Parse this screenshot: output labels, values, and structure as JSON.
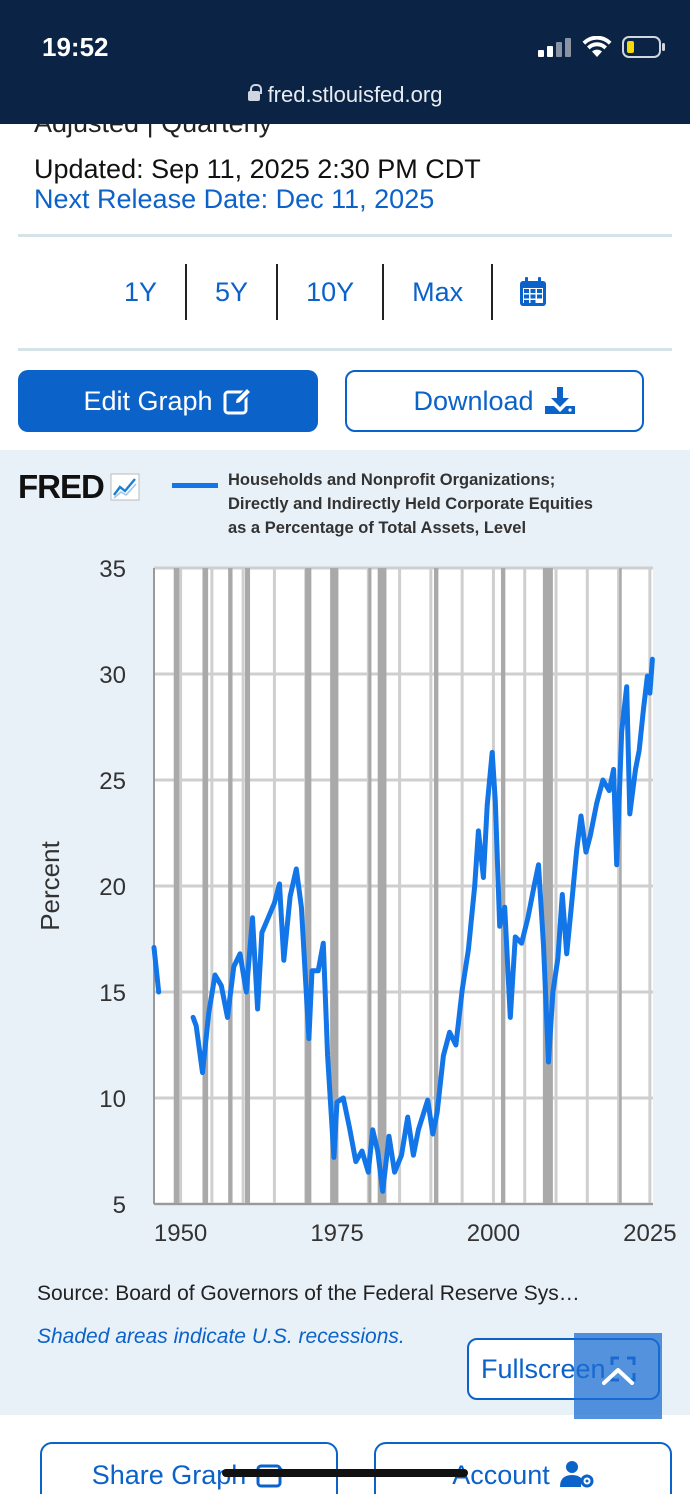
{
  "status_bar": {
    "time": "19:52",
    "url": "fred.stlouisfed.org"
  },
  "header": {
    "cut_text": "Adjusted | Quarterly",
    "updated": "Updated: Sep 11, 2025 2:30 PM CDT",
    "next_release": "Next Release Date: Dec 11, 2025"
  },
  "range_options": [
    "1Y",
    "5Y",
    "10Y",
    "Max"
  ],
  "buttons": {
    "edit_graph": "Edit Graph",
    "download": "Download",
    "fullscreen": "Fullscreen",
    "share_graph": "Share Graph",
    "account": "Account"
  },
  "graph": {
    "logo": "FRED",
    "legend_lines": [
      "Households and Nonprofit Organizations;",
      "Directly and Indirectly Held Corporate Equities",
      "as a Percentage of Total Assets, Level"
    ]
  },
  "footer": {
    "source": "Source: Board of Governors of the Federal Reserve Sys…",
    "recession_note": "Shaded areas indicate U.S. recessions."
  },
  "colors": {
    "accent": "#0b62c9",
    "series": "#1276e8",
    "recession": "#a9a9a9",
    "header_bg": "#0b2344",
    "panel_bg": "#e9f1f8"
  },
  "chart_data": {
    "type": "line",
    "ylabel": "Percent",
    "ylim": [
      5,
      35
    ],
    "xlim": [
      1945.75,
      2025.5
    ],
    "yticks": [
      35,
      30,
      25,
      20,
      15,
      10,
      5
    ],
    "xticks": [
      1950,
      1975,
      2000,
      2025
    ],
    "grid": true,
    "recessions": [
      [
        1948.9,
        1949.8
      ],
      [
        1953.5,
        1954.4
      ],
      [
        1957.6,
        1958.3
      ],
      [
        1960.3,
        1961.1
      ],
      [
        1969.9,
        1970.9
      ],
      [
        1973.9,
        1975.2
      ],
      [
        1980.0,
        1980.5
      ],
      [
        1981.5,
        1982.9
      ],
      [
        1990.5,
        1991.2
      ],
      [
        2001.2,
        2001.9
      ],
      [
        2007.9,
        2009.5
      ],
      [
        2020.1,
        2020.4
      ]
    ],
    "series": [
      {
        "segments": [
          [
            [
              1945.75,
              17.1
            ],
            [
              1946.5,
              15.0
            ]
          ],
          [
            [
              1952.0,
              13.8
            ],
            [
              1952.5,
              13.4
            ],
            [
              1953.5,
              11.2
            ],
            [
              1954.5,
              14.0
            ],
            [
              1955.5,
              15.8
            ],
            [
              1956.5,
              15.3
            ],
            [
              1957.5,
              13.8
            ],
            [
              1958.5,
              16.2
            ],
            [
              1959.5,
              16.8
            ],
            [
              1960.5,
              15.0
            ],
            [
              1961.5,
              18.5
            ],
            [
              1962.3,
              14.2
            ],
            [
              1963.0,
              17.8
            ],
            [
              1964.0,
              18.5
            ],
            [
              1965.0,
              19.2
            ],
            [
              1965.8,
              20.1
            ],
            [
              1966.5,
              16.5
            ],
            [
              1967.5,
              19.5
            ],
            [
              1968.5,
              20.8
            ],
            [
              1969.3,
              19.0
            ],
            [
              1970.5,
              12.8
            ],
            [
              1971.0,
              16.0
            ],
            [
              1972.0,
              16.0
            ],
            [
              1972.8,
              17.3
            ],
            [
              1973.5,
              12.0
            ],
            [
              1974.5,
              7.2
            ],
            [
              1975.0,
              9.8
            ],
            [
              1976.0,
              10.0
            ],
            [
              1977.0,
              8.6
            ],
            [
              1978.0,
              7.0
            ],
            [
              1979.0,
              7.5
            ],
            [
              1980.0,
              6.5
            ],
            [
              1980.7,
              8.5
            ],
            [
              1981.5,
              7.5
            ],
            [
              1982.3,
              5.6
            ],
            [
              1983.3,
              8.2
            ],
            [
              1984.2,
              6.5
            ],
            [
              1985.3,
              7.3
            ],
            [
              1986.3,
              9.1
            ],
            [
              1987.2,
              7.3
            ],
            [
              1988.0,
              8.5
            ],
            [
              1989.5,
              9.9
            ],
            [
              1990.3,
              8.3
            ],
            [
              1991.0,
              9.3
            ],
            [
              1992.0,
              12.0
            ],
            [
              1993.0,
              13.1
            ],
            [
              1994.0,
              12.5
            ],
            [
              1995.0,
              15.1
            ],
            [
              1996.0,
              17.0
            ],
            [
              1997.0,
              20.0
            ],
            [
              1997.6,
              22.6
            ],
            [
              1998.4,
              20.4
            ],
            [
              1999.0,
              23.8
            ],
            [
              1999.8,
              26.3
            ],
            [
              2000.3,
              24.0
            ],
            [
              2001.0,
              18.1
            ],
            [
              2001.8,
              19.0
            ],
            [
              2002.7,
              13.8
            ],
            [
              2003.5,
              17.6
            ],
            [
              2004.5,
              17.3
            ],
            [
              2005.5,
              18.5
            ],
            [
              2006.5,
              20.0
            ],
            [
              2007.2,
              21.0
            ],
            [
              2008.0,
              17.2
            ],
            [
              2008.8,
              11.7
            ],
            [
              2009.5,
              15.0
            ],
            [
              2010.3,
              16.6
            ],
            [
              2011.0,
              19.6
            ],
            [
              2011.7,
              16.8
            ],
            [
              2012.5,
              19.2
            ],
            [
              2013.3,
              21.7
            ],
            [
              2014.0,
              23.3
            ],
            [
              2014.8,
              21.6
            ],
            [
              2015.5,
              22.4
            ],
            [
              2016.5,
              23.9
            ],
            [
              2017.5,
              25.0
            ],
            [
              2018.5,
              24.5
            ],
            [
              2019.2,
              25.5
            ],
            [
              2019.7,
              21.0
            ],
            [
              2020.5,
              27.3
            ],
            [
              2021.3,
              29.4
            ],
            [
              2021.8,
              23.4
            ],
            [
              2022.7,
              25.5
            ],
            [
              2023.3,
              26.4
            ],
            [
              2024.0,
              28.4
            ],
            [
              2024.6,
              29.9
            ],
            [
              2025.0,
              29.1
            ],
            [
              2025.4,
              30.7
            ]
          ]
        ]
      }
    ]
  }
}
